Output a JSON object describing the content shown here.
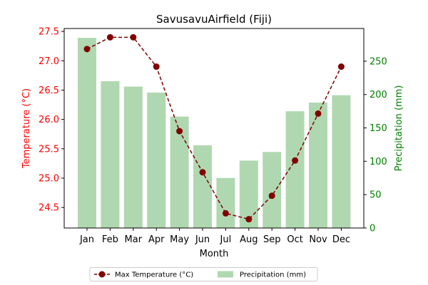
{
  "colors": {
    "temperature": "#800000",
    "precipitation": "#b0d8b0",
    "left_axis": "#ff0000",
    "right_axis": "#008000"
  },
  "chart_data": {
    "type": "bar+line",
    "title": "SavusavuAirfield (Fiji)",
    "xlabel": "Month",
    "categories": [
      "Jan",
      "Feb",
      "Mar",
      "Apr",
      "May",
      "Jun",
      "Jul",
      "Aug",
      "Sep",
      "Oct",
      "Nov",
      "Dec"
    ],
    "series": [
      {
        "name": "Max Temperature (°C)",
        "type": "line",
        "axis": "left",
        "values": [
          27.2,
          27.4,
          27.4,
          26.9,
          25.8,
          25.1,
          24.4,
          24.3,
          24.7,
          25.3,
          26.1,
          26.9
        ]
      },
      {
        "name": "Precipitation (mm)",
        "type": "bar",
        "axis": "right",
        "values": [
          285,
          220,
          212,
          203,
          167,
          124,
          75,
          101,
          114,
          175,
          188,
          199
        ]
      }
    ],
    "left_axis": {
      "label": "Temperature (°C)",
      "ylim": [
        24.15,
        27.55
      ],
      "ticks": [
        "24.5",
        "25.0",
        "25.5",
        "26.0",
        "26.5",
        "27.0",
        "27.5"
      ]
    },
    "right_axis": {
      "label": "Precipitation (mm)",
      "ylim": [
        0,
        299
      ],
      "ticks": [
        "0",
        "50",
        "100",
        "150",
        "200",
        "250"
      ]
    },
    "legend": {
      "placement": "bottom-center",
      "entries": [
        "Max Temperature (°C)",
        "Precipitation (mm)"
      ]
    },
    "grid": false
  }
}
